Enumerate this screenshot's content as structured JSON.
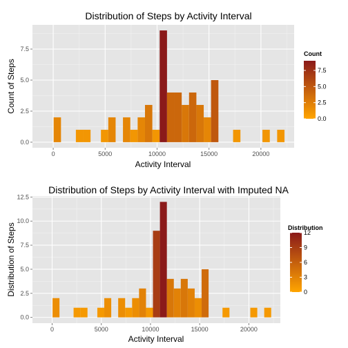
{
  "chart_data": [
    {
      "type": "bar",
      "title": "Distribution of Steps by Activity Interval",
      "xlabel": "Activity Interval",
      "ylabel": "Count of Steps",
      "xlim": [
        -2000,
        23200
      ],
      "ylim": [
        -0.45,
        9.45
      ],
      "x_ticks": [
        0,
        5000,
        10000,
        15000,
        20000
      ],
      "x_tick_labels": [
        "0",
        "5000",
        "10000",
        "15000",
        "20000"
      ],
      "y_ticks": [
        0,
        2.5,
        5,
        7.5
      ],
      "y_tick_labels": [
        "0.0",
        "2.5",
        "5.0",
        "7.5"
      ],
      "grid": true,
      "bin_width": 707,
      "bins_x": [
        41,
        2182,
        2889,
        4595,
        5302,
        6716,
        7423,
        8130,
        8837,
        9544,
        10251,
        10958,
        11665,
        12372,
        13079,
        13786,
        14493,
        15200,
        17321,
        20149,
        21563
      ],
      "values": [
        2,
        1,
        1,
        1,
        2,
        2,
        1,
        2,
        3,
        1,
        9,
        4,
        4,
        3,
        4,
        3,
        2,
        5,
        1,
        1,
        1
      ],
      "legend": {
        "title": "Count",
        "position": "right",
        "min": 0,
        "max": 9,
        "ticks": [
          0,
          2.5,
          5,
          7.5
        ],
        "tick_labels": [
          "0.0",
          "2.5",
          "5.0",
          "7.5"
        ],
        "low_color": "#ffa500",
        "high_color": "#8b1a1a"
      }
    },
    {
      "type": "bar",
      "title": "Distribution of Steps by Activity Interval with Imputed NA",
      "xlabel": "Activity Interval",
      "ylabel": "Distribution of Steps",
      "xlim": [
        -2000,
        23200
      ],
      "ylim": [
        -0.6,
        12.6
      ],
      "x_ticks": [
        0,
        5000,
        10000,
        15000,
        20000
      ],
      "x_tick_labels": [
        "0",
        "5000",
        "10000",
        "15000",
        "20000"
      ],
      "y_ticks": [
        0,
        2.5,
        5,
        7.5,
        10,
        12.5
      ],
      "y_tick_labels": [
        "0.0",
        "2.5",
        "5.0",
        "7.5",
        "10.0",
        "12.5"
      ],
      "grid": true,
      "bin_width": 707,
      "bins_x": [
        41,
        2182,
        2889,
        4595,
        5302,
        6716,
        7423,
        8130,
        8837,
        9544,
        10251,
        10958,
        11665,
        12372,
        13079,
        13786,
        14493,
        15200,
        17321,
        20149,
        21563
      ],
      "values": [
        2,
        1,
        1,
        1,
        2,
        2,
        1,
        2,
        3,
        1,
        9,
        12,
        4,
        3,
        4,
        3,
        2,
        5,
        1,
        1,
        1
      ],
      "legend": {
        "title": "Distribution",
        "position": "right",
        "min": 0,
        "max": 12,
        "ticks": [
          0,
          3,
          6,
          9,
          12
        ],
        "tick_labels": [
          "0",
          "3",
          "6",
          "9",
          "12"
        ],
        "low_color": "#ffa500",
        "high_color": "#8b1a1a"
      }
    }
  ]
}
